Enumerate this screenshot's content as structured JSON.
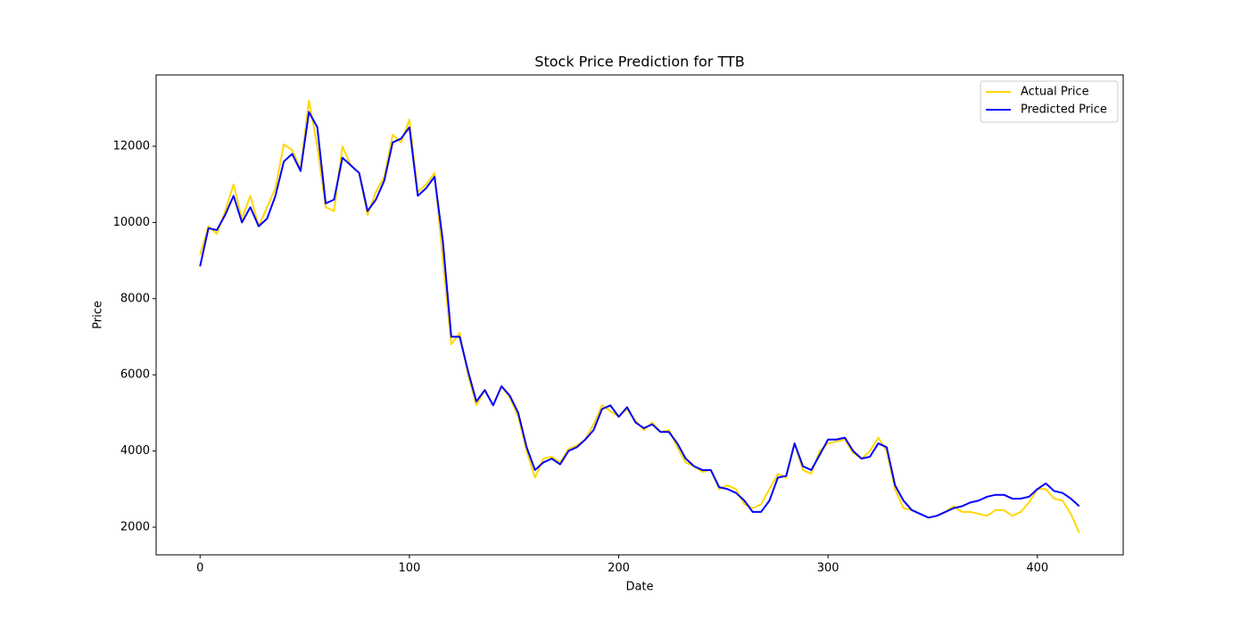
{
  "chart_data": {
    "type": "line",
    "title": "Stock Price Prediction for TTB",
    "x_label": "Date",
    "y_label": "Price",
    "x": [
      0,
      4,
      8,
      12,
      16,
      20,
      24,
      28,
      32,
      36,
      40,
      44,
      48,
      52,
      56,
      60,
      64,
      68,
      72,
      76,
      80,
      84,
      88,
      92,
      96,
      100,
      104,
      108,
      112,
      116,
      120,
      124,
      128,
      132,
      136,
      140,
      144,
      148,
      152,
      156,
      160,
      164,
      168,
      172,
      176,
      180,
      184,
      188,
      192,
      196,
      200,
      204,
      208,
      212,
      216,
      220,
      224,
      228,
      232,
      236,
      240,
      244,
      248,
      252,
      256,
      260,
      264,
      268,
      272,
      276,
      280,
      284,
      288,
      292,
      296,
      300,
      304,
      308,
      312,
      316,
      320,
      324,
      328,
      332,
      336,
      340,
      344,
      348,
      352,
      356,
      360,
      364,
      368,
      372,
      376,
      380,
      384,
      388,
      392,
      396,
      400,
      404,
      408,
      412,
      416,
      420
    ],
    "series": [
      {
        "name": "Actual Price",
        "color": "#ffd700",
        "values": [
          9150,
          9900,
          9700,
          10300,
          11000,
          10100,
          10700,
          9900,
          10400,
          10900,
          12050,
          11900,
          11400,
          13200,
          12000,
          10400,
          10300,
          12000,
          11500,
          11300,
          10200,
          10800,
          11200,
          12300,
          12100,
          12700,
          10800,
          11000,
          11300,
          9000,
          6800,
          7100,
          6000,
          5200,
          5600,
          5200,
          5700,
          5400,
          4900,
          4000,
          3300,
          3800,
          3850,
          3700,
          4050,
          4150,
          4300,
          4700,
          5200,
          5050,
          4900,
          5100,
          4800,
          4550,
          4750,
          4500,
          4550,
          4100,
          3700,
          3600,
          3450,
          3500,
          3000,
          3100,
          3000,
          2600,
          2500,
          2600,
          3000,
          3400,
          3300,
          4200,
          3500,
          3400,
          4000,
          4200,
          4250,
          4300,
          3950,
          3800,
          4000,
          4350,
          4000,
          3000,
          2500,
          2450,
          2350,
          2250,
          2300,
          2400,
          2550,
          2400,
          2400,
          2350,
          2300,
          2450,
          2450,
          2300,
          2400,
          2650,
          3000,
          3000,
          2750,
          2700,
          2350,
          1850
        ]
      },
      {
        "name": "Predicted Price",
        "color": "#0000ff",
        "values": [
          8850,
          9850,
          9800,
          10200,
          10700,
          10000,
          10400,
          9900,
          10100,
          10700,
          11600,
          11800,
          11350,
          12900,
          12500,
          10500,
          10600,
          11700,
          11500,
          11300,
          10300,
          10600,
          11100,
          12100,
          12200,
          12500,
          10700,
          10900,
          11200,
          9500,
          7000,
          7000,
          6100,
          5300,
          5600,
          5200,
          5700,
          5450,
          5000,
          4100,
          3500,
          3700,
          3800,
          3650,
          4000,
          4100,
          4300,
          4550,
          5100,
          5200,
          4900,
          5150,
          4750,
          4600,
          4700,
          4500,
          4500,
          4200,
          3800,
          3600,
          3500,
          3500,
          3050,
          3000,
          2900,
          2700,
          2400,
          2400,
          2700,
          3300,
          3350,
          4200,
          3600,
          3500,
          3900,
          4300,
          4300,
          4350,
          4000,
          3800,
          3850,
          4200,
          4100,
          3100,
          2700,
          2450,
          2350,
          2250,
          2300,
          2400,
          2500,
          2550,
          2650,
          2700,
          2800,
          2850,
          2850,
          2750,
          2750,
          2800,
          3000,
          3150,
          2950,
          2900,
          2750,
          2550
        ]
      }
    ],
    "xlim": [
      -21,
      441
    ],
    "ylim": [
      1274,
      13873
    ],
    "xticks": [
      0,
      100,
      200,
      300,
      400
    ],
    "yticks": [
      2000,
      4000,
      6000,
      8000,
      10000,
      12000
    ],
    "grid": false,
    "legend": "upper right"
  }
}
